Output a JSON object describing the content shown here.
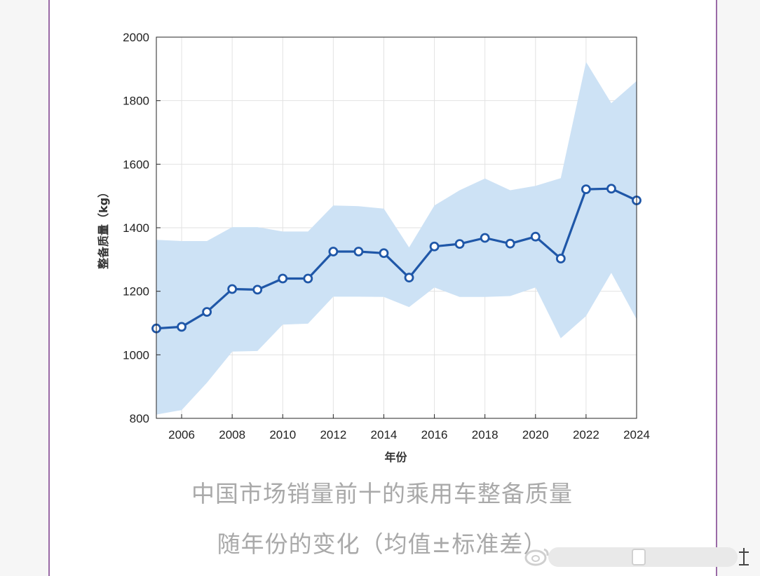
{
  "chart_data": {
    "type": "line",
    "title": "中国市场销量前十的乘用车整备质量",
    "subtitle": "随年份的变化（均值±标准差）",
    "xlabel": "年份",
    "ylabel": "整备质量（kg）",
    "xlim": [
      2005,
      2024
    ],
    "ylim": [
      800,
      2000
    ],
    "x_ticks": [
      2006,
      2008,
      2010,
      2012,
      2014,
      2016,
      2018,
      2020,
      2022,
      2024
    ],
    "y_ticks": [
      800,
      1000,
      1200,
      1400,
      1600,
      1800,
      2000
    ],
    "grid": true,
    "series": [
      {
        "x": [
          2005,
          2006,
          2007,
          2008,
          2009,
          2010,
          2011,
          2012,
          2013,
          2014,
          2015,
          2016,
          2017,
          2018,
          2019,
          2020,
          2021,
          2022,
          2023,
          2024
        ],
        "values": [
          1083,
          1088,
          1135,
          1207,
          1205,
          1240,
          1240,
          1325,
          1325,
          1320,
          1243,
          1341,
          1349,
          1368,
          1350,
          1372,
          1303,
          1521,
          1523,
          1486
        ],
        "upper": [
          1362,
          1358,
          1358,
          1402,
          1402,
          1388,
          1388,
          1470,
          1468,
          1460,
          1338,
          1470,
          1518,
          1555,
          1518,
          1532,
          1556,
          1922,
          1792,
          1862
        ],
        "lower": [
          812,
          826,
          912,
          1010,
          1012,
          1095,
          1098,
          1183,
          1183,
          1182,
          1150,
          1212,
          1182,
          1182,
          1185,
          1212,
          1052,
          1122,
          1258,
          1112
        ]
      }
    ],
    "colors": {
      "line": "#1f57a8",
      "band": "#cde2f5",
      "grid": "#e2e2e2"
    }
  },
  "watermark_icon": "weibo-logo-icon"
}
